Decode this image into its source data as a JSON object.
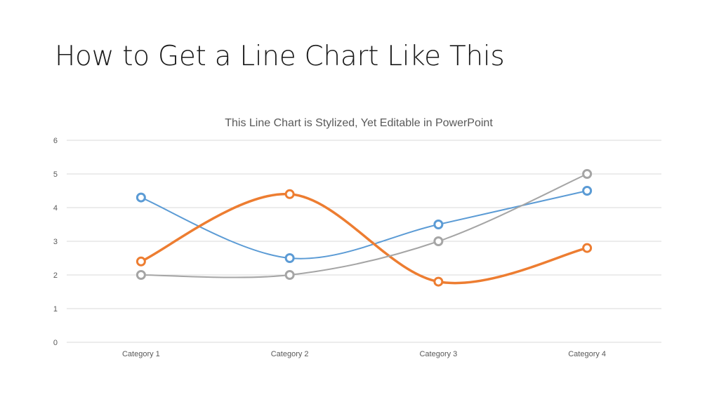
{
  "slide": {
    "title": "How to Get a Line Chart Like This"
  },
  "chart_data": {
    "type": "line",
    "title": "This Line Chart is Stylized, Yet Editable in PowerPoint",
    "xlabel": "",
    "ylabel": "",
    "categories": [
      "Category 1",
      "Category 2",
      "Category 3",
      "Category 4"
    ],
    "ylim": [
      0,
      6
    ],
    "yticks": [
      "0",
      "1",
      "2",
      "3",
      "4",
      "5",
      "6"
    ],
    "grid": true,
    "legend": "none",
    "smooth": true,
    "series": [
      {
        "values": [
          4.3,
          2.5,
          3.5,
          4.5
        ],
        "color": "#5b9bd5",
        "line_weight": "thin"
      },
      {
        "values": [
          2.4,
          4.4,
          1.8,
          2.8
        ],
        "color": "#ed7d31",
        "line_weight": "thick"
      },
      {
        "values": [
          2.0,
          2.0,
          3.0,
          5.0
        ],
        "color": "#a5a5a5",
        "line_weight": "thin"
      }
    ]
  }
}
